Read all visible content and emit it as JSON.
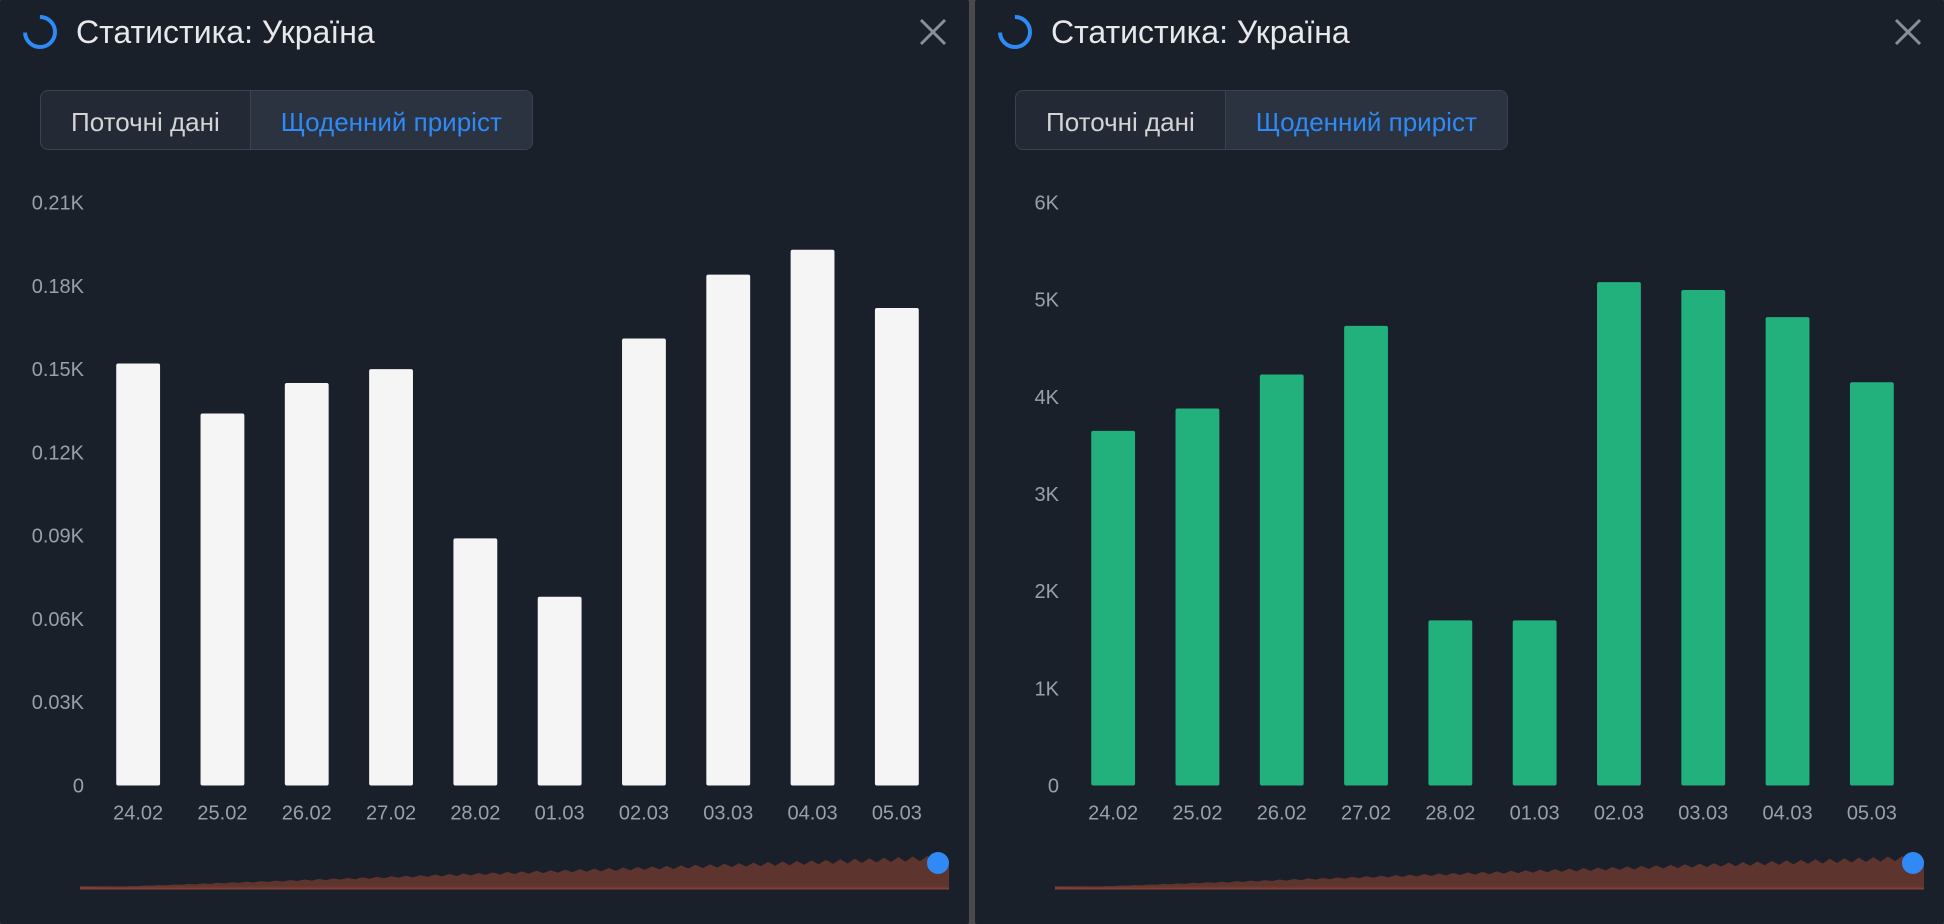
{
  "panels": [
    {
      "title": "Статистика: Україна",
      "icon_color": "#2f8af5",
      "close_color": "#8a8f97",
      "tabs": {
        "inactive_label": "Поточні дані",
        "active_label": "Щоденний приріст"
      },
      "chart": {
        "type": "bar",
        "background_color": "#1a2029",
        "bar_color": "#f5f5f6",
        "axis_label_color": "#9aa0a8",
        "axis_fontsize": 20,
        "bar_width": 0.52,
        "categories": [
          "24.02",
          "25.02",
          "26.02",
          "27.02",
          "28.02",
          "01.03",
          "02.03",
          "03.03",
          "04.03",
          "05.03"
        ],
        "values": [
          0.152,
          0.134,
          0.145,
          0.15,
          0.089,
          0.068,
          0.161,
          0.184,
          0.193,
          0.172
        ],
        "ylim": [
          0,
          0.21
        ],
        "ytick_labels": [
          "0",
          "0.03K",
          "0.06K",
          "0.09K",
          "0.12K",
          "0.15K",
          "0.18K",
          "0.21K"
        ],
        "ytick_values": [
          0,
          0.03,
          0.06,
          0.09,
          0.12,
          0.15,
          0.18,
          0.21
        ]
      },
      "mini": {
        "fill": "#6b3830",
        "line": "#833f34"
      }
    },
    {
      "title": "Статистика: Україна",
      "icon_color": "#2f8af5",
      "close_color": "#8a8f97",
      "tabs": {
        "inactive_label": "Поточні дані",
        "active_label": "Щоденний приріст"
      },
      "chart": {
        "type": "bar",
        "background_color": "#1a2029",
        "bar_color": "#22b07d",
        "axis_label_color": "#9aa0a8",
        "axis_fontsize": 20,
        "bar_width": 0.52,
        "categories": [
          "24.02",
          "25.02",
          "26.02",
          "27.02",
          "28.02",
          "01.03",
          "02.03",
          "03.03",
          "04.03",
          "05.03"
        ],
        "values": [
          3650,
          3880,
          4230,
          4730,
          1700,
          1700,
          5180,
          5100,
          4820,
          4150
        ],
        "ylim": [
          0,
          6000
        ],
        "ytick_labels": [
          "0",
          "1K",
          "2K",
          "3K",
          "4K",
          "5K",
          "6K"
        ],
        "ytick_values": [
          0,
          1000,
          2000,
          3000,
          4000,
          5000,
          6000
        ]
      },
      "mini": {
        "fill": "#6b3830",
        "line": "#833f34"
      }
    }
  ]
}
